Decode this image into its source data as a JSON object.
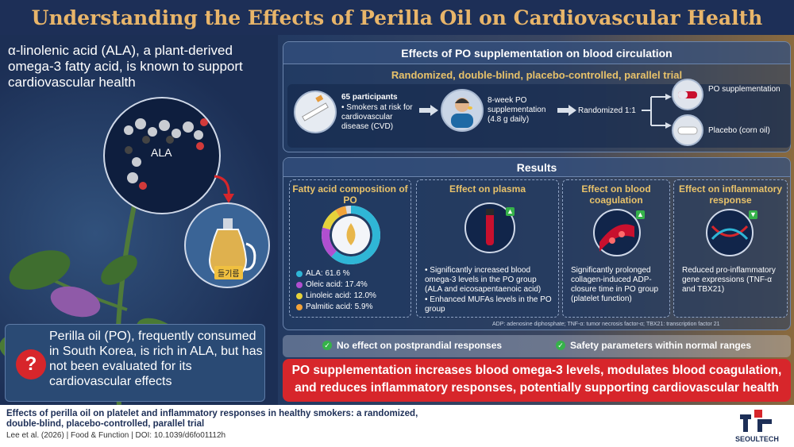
{
  "title": "Understanding the Effects of Perilla Oil on Cardiovascular Health",
  "intro": {
    "text": "α-linolenic acid (ALA), a plant-derived omega-3 fatty acid, is known to support cardiovascular health",
    "ala_label": "ALA",
    "oil_label": "들기름"
  },
  "question": {
    "icon": "question-icon",
    "text": "Perilla oil (PO), frequently consumed in South Korea, is rich in ALA, but has not been evaluated for its cardiovascular effects"
  },
  "trial": {
    "heading": "Effects of PO supplementation on blood circulation",
    "subheading": "Randomized, double-blind, placebo-controlled, parallel trial",
    "participants_title": "65 participants",
    "participants_detail": "• Smokers at risk for cardiovascular disease (CVD)",
    "duration": "8-week PO supplementation (4.8 g daily)",
    "randomized": "Randomized 1:1",
    "arm_po": "PO supplementation",
    "arm_placebo": "Placebo (corn oil)"
  },
  "results": {
    "heading": "Results",
    "fatty_acid": {
      "title": "Fatty acid composition of PO",
      "items": [
        {
          "label": "ALA: 61.6 %",
          "color": "#2fb6d6",
          "value": 61.6
        },
        {
          "label": "Oleic acid: 17.4%",
          "color": "#b04fd0",
          "value": 17.4
        },
        {
          "label": "Linoleic acid: 12.0%",
          "color": "#e6d23a",
          "value": 12.0
        },
        {
          "label": "Palmitic acid: 5.9%",
          "color": "#f2a33a",
          "value": 5.9
        }
      ]
    },
    "plasma": {
      "title": "Effect on plasma",
      "bullet1": "• Significantly increased blood omega-3 levels in the PO group (ALA and eicosapentaenoic acid)",
      "bullet2": "• Enhanced MUFAs levels in the PO group"
    },
    "coagulation": {
      "title": "Effect on blood coagulation",
      "text": "Significantly prolonged collagen-induced ADP-closure time in PO group (platelet function)"
    },
    "inflammatory": {
      "title": "Effect on inflammatory response",
      "text": "Reduced pro-inflammatory gene expressions (TNF-α and TBX21)"
    },
    "footnote": "ADP: adenosine diphosphate; TNF-α: tumor necrosis factor-α; TBX21: transcription factor 21"
  },
  "checks": {
    "item1": "No effect on postprandial responses",
    "item2": "Safety parameters within normal ranges"
  },
  "conclusion": "PO supplementation increases blood omega-3 levels, modulates blood coagulation, and reduces inflammatory responses, potentially supporting cardiovascular health",
  "footer": {
    "ref_title": "Effects of perilla oil on platelet and inflammatory responses in healthy smokers: a randomized, double-blind, placebo-controlled, parallel trial",
    "citation": "Lee et al. (2026)  |  Food & Function  |  DOI: 10.1039/d6fo01112h",
    "logo_text": "SEOULTECH"
  }
}
